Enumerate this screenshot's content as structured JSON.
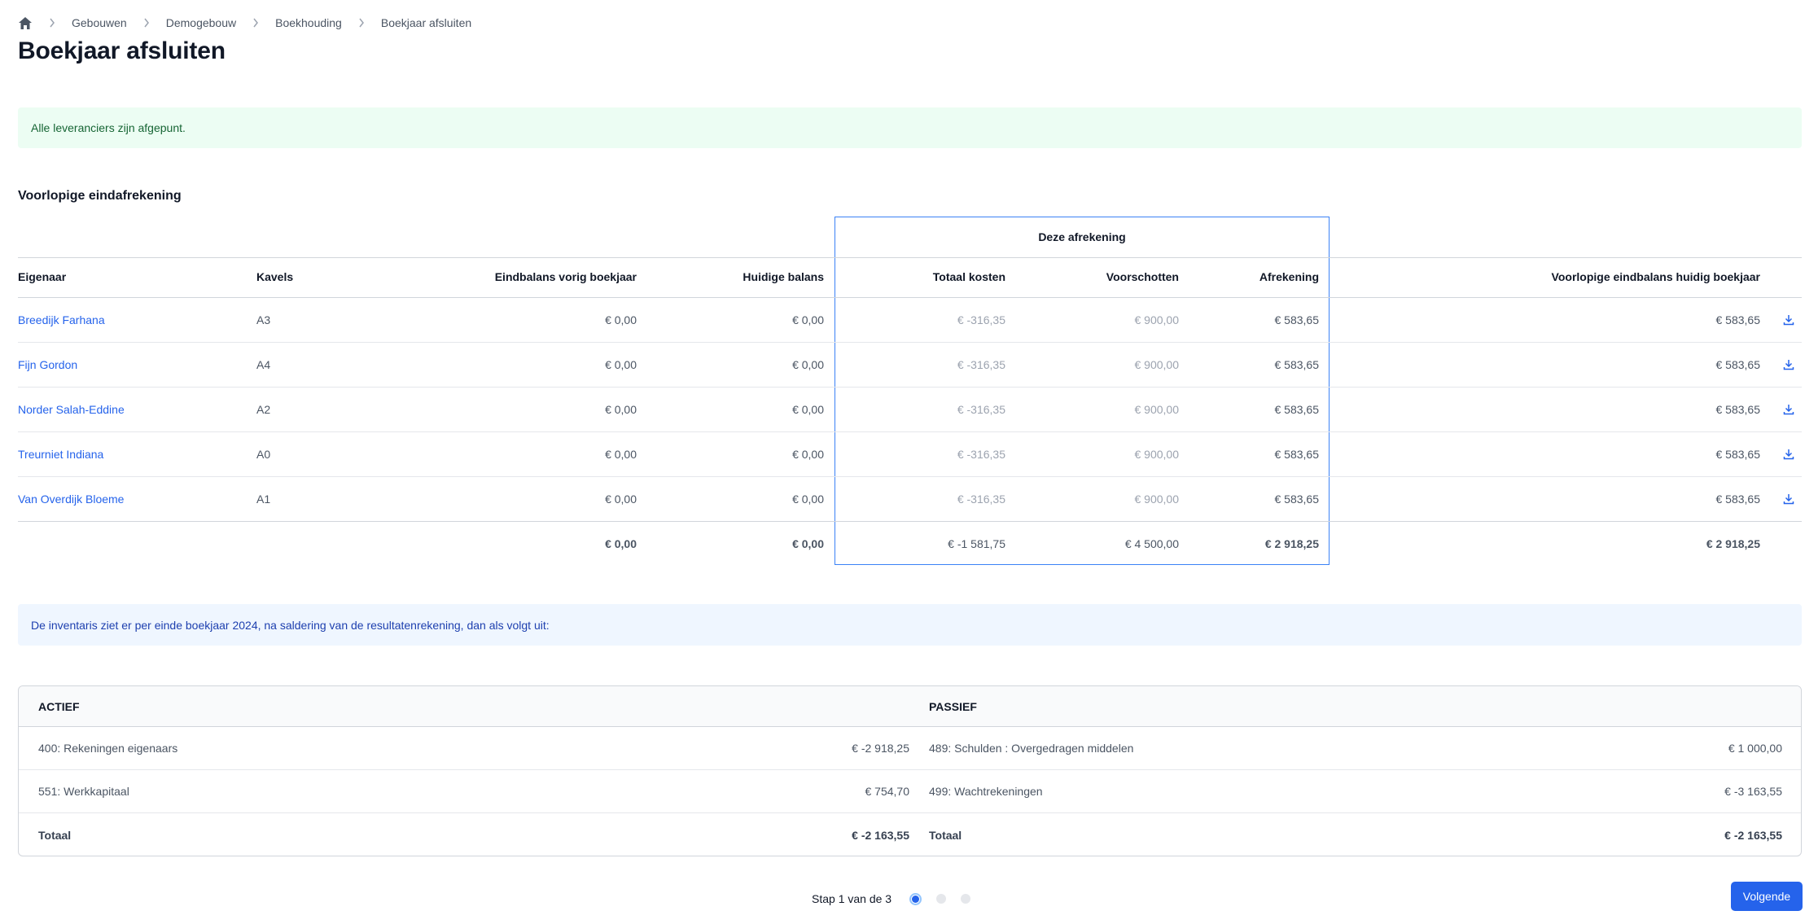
{
  "breadcrumb": {
    "home_icon": "home-icon",
    "items": [
      "Gebouwen",
      "Demogebouw",
      "Boekhouding",
      "Boekjaar afsluiten"
    ]
  },
  "page_title": "Boekjaar afsluiten",
  "alert_success": "Alle leveranciers zijn afgepunt.",
  "section_title": "Voorlopige eindafrekening",
  "settlement_group_label": "Deze afrekening",
  "table": {
    "headers": {
      "owner": "Eigenaar",
      "kavels": "Kavels",
      "eindbalans_vorig": "Eindbalans vorig boekjaar",
      "huidige_balans": "Huidige balans",
      "totaal_kosten": "Totaal kosten",
      "voorschotten": "Voorschotten",
      "afrekening": "Afrekening",
      "voorlopige_eindbalans": "Voorlopige eindbalans huidig boekjaar"
    },
    "rows": [
      {
        "owner": "Breedijk Farhana",
        "kavel": "A3",
        "eind": "€ 0,00",
        "huid": "€ 0,00",
        "tot": "€ -316,35",
        "voor": "€ 900,00",
        "afr": "€ 583,65",
        "vlp": "€ 583,65"
      },
      {
        "owner": "Fijn Gordon",
        "kavel": "A4",
        "eind": "€ 0,00",
        "huid": "€ 0,00",
        "tot": "€ -316,35",
        "voor": "€ 900,00",
        "afr": "€ 583,65",
        "vlp": "€ 583,65"
      },
      {
        "owner": "Norder Salah-Eddine",
        "kavel": "A2",
        "eind": "€ 0,00",
        "huid": "€ 0,00",
        "tot": "€ -316,35",
        "voor": "€ 900,00",
        "afr": "€ 583,65",
        "vlp": "€ 583,65"
      },
      {
        "owner": "Treurniet Indiana",
        "kavel": "A0",
        "eind": "€ 0,00",
        "huid": "€ 0,00",
        "tot": "€ -316,35",
        "voor": "€ 900,00",
        "afr": "€ 583,65",
        "vlp": "€ 583,65"
      },
      {
        "owner": "Van Overdijk Bloeme",
        "kavel": "A1",
        "eind": "€ 0,00",
        "huid": "€ 0,00",
        "tot": "€ -316,35",
        "voor": "€ 900,00",
        "afr": "€ 583,65",
        "vlp": "€ 583,65"
      }
    ],
    "totals": {
      "eind": "€ 0,00",
      "huid": "€ 0,00",
      "tot": "€ -1 581,75",
      "voor": "€ 4 500,00",
      "afr": "€ 2 918,25",
      "vlp": "€ 2 918,25"
    },
    "download_icon": "download-icon"
  },
  "alert_info": "De inventaris ziet er per einde boekjaar 2024, na saldering van de resultatenrekening, dan als volgt uit:",
  "inventory": {
    "actief_header": "ACTIEF",
    "passief_header": "PASSIEF",
    "rows": [
      {
        "a_label": "400: Rekeningen eigenaars",
        "a_value": "€ -2 918,25",
        "p_label": "489: Schulden : Overgedragen middelen",
        "p_value": "€ 1 000,00"
      },
      {
        "a_label": "551: Werkkapitaal",
        "a_value": "€ 754,70",
        "p_label": "499: Wachtrekeningen",
        "p_value": "€ -3 163,55"
      }
    ],
    "total": {
      "a_label": "Totaal",
      "a_value": "€ -2 163,55",
      "p_label": "Totaal",
      "p_value": "€ -2 163,55"
    }
  },
  "stepper": {
    "label": "Stap 1 van de 3",
    "current": 1,
    "total": 3
  },
  "next_button": "Volgende",
  "colors": {
    "primary": "#2563eb",
    "success_bg": "#ecfdf3",
    "info_bg": "#eff6ff",
    "highlight_border": "#3b82f6"
  }
}
